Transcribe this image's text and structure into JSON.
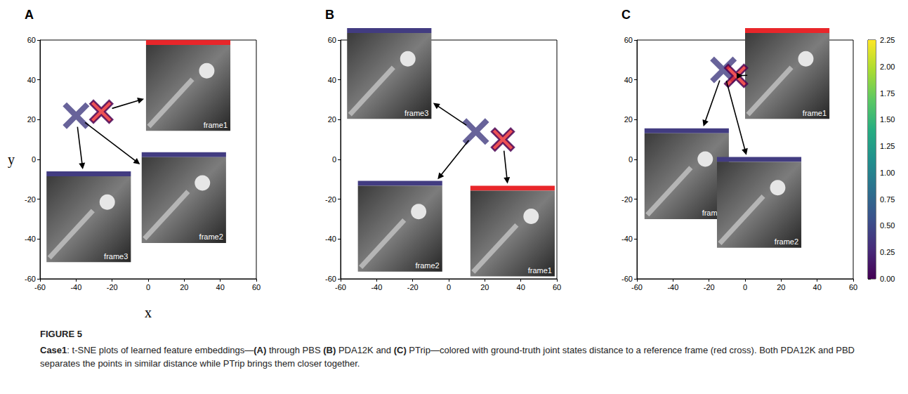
{
  "figure_label": "FIGURE 5",
  "caption": "Case1: t-SNE plots of learned feature embeddings—(A) through PBS (B) PDA12K and (C) PTrip—colored with ground-truth joint states distance to a reference frame (red cross). Both PDA12K and PBD separates the points in similar distance while PTrip brings them closer together.",
  "colorbar": {
    "range": [
      0,
      2.25
    ],
    "ticks": [
      {
        "value": 0,
        "label": "0.00"
      },
      {
        "value": 0.25,
        "label": "0.25"
      },
      {
        "value": 0.5,
        "label": "0.50"
      },
      {
        "value": 0.75,
        "label": "0.75"
      },
      {
        "value": 1,
        "label": "1.00"
      },
      {
        "value": 1.25,
        "label": "1.25"
      },
      {
        "value": 1.5,
        "label": "1.50"
      },
      {
        "value": 1.75,
        "label": "1.75"
      },
      {
        "value": 2,
        "label": "2.00"
      },
      {
        "value": 2.25,
        "label": "2.25"
      }
    ]
  },
  "chart_data": [
    {
      "type": "scatter",
      "panel": "A",
      "xlabel": "x",
      "ylabel": "y",
      "marker": "x",
      "grid": false,
      "xlim": [
        -60,
        60
      ],
      "ylim": [
        -60,
        60
      ],
      "xticks": [
        -60,
        -40,
        -20,
        0,
        20,
        40,
        60
      ],
      "yticks": [
        -60,
        -40,
        -20,
        0,
        20,
        40,
        60
      ],
      "points": [
        {
          "x": -40,
          "y": 22,
          "distance": 0.4,
          "frames": [
            "frame3",
            "frame2"
          ]
        },
        {
          "x": -26,
          "y": 24,
          "distance": 0,
          "color": "#e8262a",
          "frames": [
            "frame1"
          ]
        }
      ]
    },
    {
      "type": "scatter",
      "panel": "B",
      "marker": "x",
      "grid": false,
      "xlim": [
        -60,
        60
      ],
      "ylim": [
        -60,
        60
      ],
      "xticks": [
        -60,
        -40,
        -20,
        0,
        20,
        40,
        60
      ],
      "yticks": [
        -60,
        -40,
        -20,
        0,
        20,
        40,
        60
      ],
      "points": [
        {
          "x": 15,
          "y": 14,
          "distance": 0.4,
          "frames": [
            "frame3",
            "frame2"
          ]
        },
        {
          "x": 30,
          "y": 10,
          "distance": 0,
          "color": "#e8262a",
          "frames": [
            "frame1"
          ]
        }
      ]
    },
    {
      "type": "scatter",
      "panel": "C",
      "marker": "x",
      "grid": false,
      "xlim": [
        -60,
        60
      ],
      "ylim": [
        -60,
        60
      ],
      "xticks": [
        -60,
        -40,
        -20,
        0,
        20,
        40,
        60
      ],
      "yticks": [
        -60,
        -40,
        -20,
        0,
        20,
        40,
        60
      ],
      "points": [
        {
          "x": -12,
          "y": 45,
          "distance": 0.4,
          "frames": [
            "frame3",
            "frame2"
          ]
        },
        {
          "x": -5,
          "y": 42,
          "distance": 0,
          "color": "#e8262a",
          "frames": [
            "frame1"
          ]
        }
      ]
    }
  ]
}
